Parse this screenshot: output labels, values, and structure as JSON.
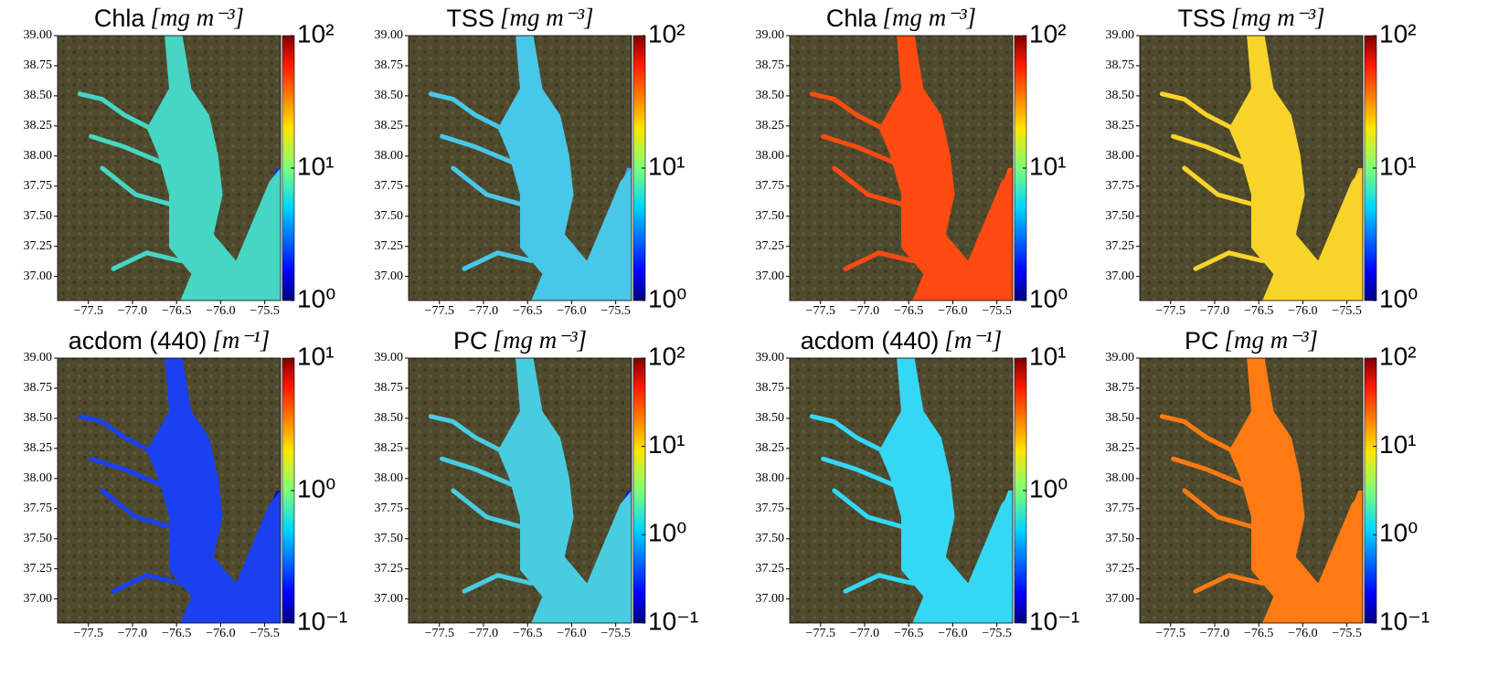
{
  "xlim": [
    -77.85,
    -75.32
  ],
  "ylim": [
    36.8,
    39.0
  ],
  "xticks": [
    {
      "value": -77.5,
      "label": "−77.5"
    },
    {
      "value": -77.0,
      "label": "−77.0"
    },
    {
      "value": -76.5,
      "label": "−76.5"
    },
    {
      "value": -76.0,
      "label": "−76.0"
    },
    {
      "value": -75.5,
      "label": "−75.5"
    }
  ],
  "yticks": [
    {
      "value": 37,
      "label": "37.00"
    },
    {
      "value": 37.25,
      "label": "37.25"
    },
    {
      "value": 37.5,
      "label": "37.50"
    },
    {
      "value": 37.75,
      "label": "37.75"
    },
    {
      "value": 38,
      "label": "38.00"
    },
    {
      "value": 38.25,
      "label": "38.25"
    },
    {
      "value": 38.5,
      "label": "38.50"
    },
    {
      "value": 38.75,
      "label": "38.75"
    },
    {
      "value": 39,
      "label": "39.00"
    }
  ],
  "panels": [
    {
      "label": "Chla",
      "unit": "[mg m⁻³]",
      "log": true,
      "clim": [
        1,
        100
      ],
      "cticks": [
        {
          "value": 1,
          "label": "10⁰"
        },
        {
          "value": 10,
          "label": "10¹"
        },
        {
          "value": 100,
          "label": "10²"
        }
      ],
      "water_color": "#45d6c4",
      "ocean_color": "#1638d8"
    },
    {
      "label": "TSS",
      "unit": "[mg m⁻³]",
      "log": true,
      "clim": [
        1,
        100
      ],
      "cticks": [
        {
          "value": 1,
          "label": "10⁰"
        },
        {
          "value": 10,
          "label": "10¹"
        },
        {
          "value": 100,
          "label": "10²"
        }
      ],
      "water_color": "#48c8e8",
      "ocean_color": "#3aa8ec"
    },
    {
      "label": "Chla",
      "unit": "[mg m⁻³]",
      "log": true,
      "clim": [
        1,
        100
      ],
      "cticks": [
        {
          "value": 1,
          "label": "10⁰"
        },
        {
          "value": 10,
          "label": "10¹"
        },
        {
          "value": 100,
          "label": "10²"
        }
      ],
      "water_color": "#ff4a12",
      "ocean_color": "#ff5a10"
    },
    {
      "label": "TSS",
      "unit": "[mg m⁻³]",
      "log": true,
      "clim": [
        1,
        100
      ],
      "cticks": [
        {
          "value": 1,
          "label": "10⁰"
        },
        {
          "value": 10,
          "label": "10¹"
        },
        {
          "value": 100,
          "label": "10²"
        }
      ],
      "water_color": "#f8d42a",
      "ocean_color": "#fcb830"
    },
    {
      "label": "acdom (440)",
      "unit": "[m⁻¹]",
      "log": true,
      "clim": [
        0.1,
        10
      ],
      "cticks": [
        {
          "value": 0.1,
          "label": "10⁻¹"
        },
        {
          "value": 1,
          "label": "10⁰"
        },
        {
          "value": 10,
          "label": "10¹"
        }
      ],
      "water_color": "#1a40f0",
      "ocean_color": "#001aa0"
    },
    {
      "label": "PC",
      "unit": "[mg m⁻³]",
      "log": true,
      "clim": [
        0.1,
        100
      ],
      "cticks": [
        {
          "value": 0.1,
          "label": "10⁻¹"
        },
        {
          "value": 1,
          "label": "10⁰"
        },
        {
          "value": 10,
          "label": "10¹"
        },
        {
          "value": 100,
          "label": "10²"
        }
      ],
      "water_color": "#48cce0",
      "ocean_color": "#0a2ad0"
    },
    {
      "label": "acdom (440)",
      "unit": "[m⁻¹]",
      "log": true,
      "clim": [
        0.1,
        10
      ],
      "cticks": [
        {
          "value": 0.1,
          "label": "10⁻¹"
        },
        {
          "value": 1,
          "label": "10⁰"
        },
        {
          "value": 10,
          "label": "10¹"
        }
      ],
      "water_color": "#34d8f4",
      "ocean_color": "#40e0e8"
    },
    {
      "label": "PC",
      "unit": "[mg m⁻³]",
      "log": true,
      "clim": [
        0.1,
        100
      ],
      "cticks": [
        {
          "value": 0.1,
          "label": "10⁻¹"
        },
        {
          "value": 1,
          "label": "10⁰"
        },
        {
          "value": 10,
          "label": "10¹"
        },
        {
          "value": 100,
          "label": "10²"
        }
      ],
      "water_color": "#ff7a12",
      "ocean_color": "#ff7a12"
    }
  ]
}
